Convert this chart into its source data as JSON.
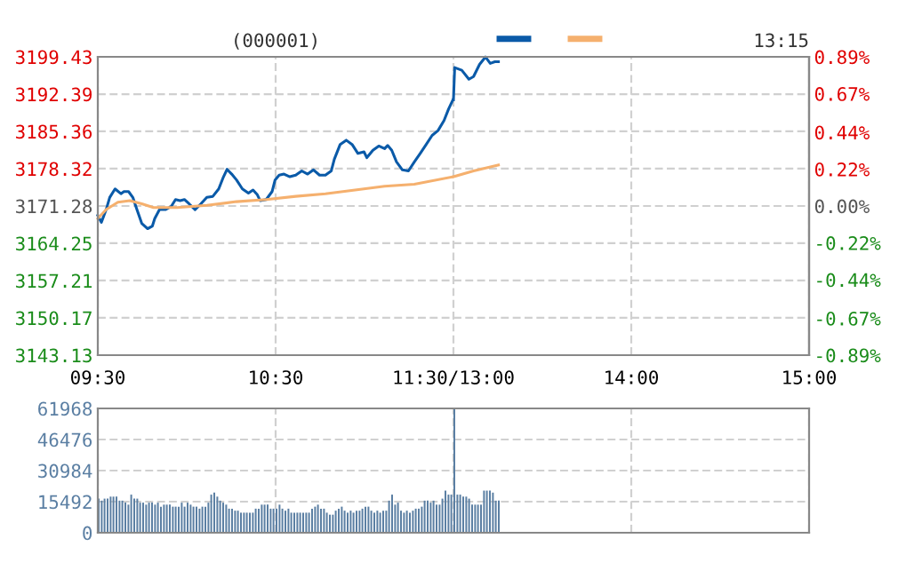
{
  "chart_data": [
    {
      "type": "line",
      "annotations": [
        "(000001)"
      ],
      "grid": true,
      "line_style": "solid",
      "marker": "none",
      "xlim": [
        9.5,
        11.5
      ],
      "xticks": [
        {
          "value": 9.5,
          "label": "09:30"
        },
        {
          "value": 10.5,
          "label": "10:30"
        },
        {
          "value": 11.5,
          "label": "11:30/13:00"
        }
      ],
      "ylim": [
        3143.13,
        3199.43
      ],
      "yticks": [
        3143.13,
        3150.17,
        3157.21,
        3164.25,
        3171.28,
        3178.32,
        3185.36,
        3192.39,
        3199.43
      ],
      "series": [
        {
          "color": "#0a5aa8",
          "x": [
            9.5,
            9.52,
            9.547,
            9.567,
            9.597,
            9.63,
            9.647,
            9.673,
            9.697,
            9.72,
            9.747,
            9.78,
            9.807,
            9.82,
            9.847,
            9.88,
            9.913,
            9.937,
            9.963,
            9.987,
            10.013,
            10.047,
            10.08,
            10.113,
            10.147,
            10.18,
            10.207,
            10.227,
            10.253,
            10.28,
            10.313,
            10.347,
            10.373,
            10.397,
            10.413,
            10.447,
            10.48,
            10.497,
            10.52,
            10.547,
            10.58,
            10.613,
            10.647,
            10.68,
            10.713,
            10.747,
            10.78,
            10.813,
            10.83,
            10.863,
            10.897,
            10.93,
            10.963,
            10.997,
            11.013,
            11.047,
            11.08,
            11.113,
            11.13,
            11.153,
            11.18,
            11.213,
            11.247,
            11.28,
            11.313,
            11.347,
            11.38,
            11.413,
            11.447,
            11.473,
            11.497
          ],
          "values": [
            3169.5,
            3168.2,
            3170.6,
            3172.9,
            3174.5,
            3173.6,
            3174.0,
            3174.0,
            3172.9,
            3170.6,
            3168.0,
            3167.0,
            3167.5,
            3168.9,
            3170.6,
            3170.6,
            3171.2,
            3172.5,
            3172.3,
            3172.5,
            3171.7,
            3170.6,
            3171.7,
            3172.9,
            3173.1,
            3174.5,
            3176.8,
            3178.2,
            3177.3,
            3176.2,
            3174.5,
            3173.7,
            3174.3,
            3173.4,
            3172.3,
            3172.5,
            3174.0,
            3176.2,
            3177.1,
            3177.3,
            3176.8,
            3177.1,
            3177.9,
            3177.3,
            3178.1,
            3177.1,
            3177.1,
            3177.9,
            3180.1,
            3182.9,
            3183.7,
            3182.9,
            3181.2,
            3181.5,
            3180.4,
            3181.8,
            3182.6,
            3182.1,
            3182.7,
            3181.8,
            3179.6,
            3178.1,
            3177.9,
            3179.6,
            3181.2,
            3182.9,
            3184.6,
            3185.5,
            3187.4,
            3189.6,
            3191.3
          ]
        },
        {
          "color": "#f5b06e",
          "x": [
            9.5,
            9.547,
            9.613,
            9.68,
            9.747,
            9.813,
            9.947,
            10.113,
            10.28,
            10.447,
            10.613,
            10.78,
            10.947,
            11.113,
            11.28,
            11.5
          ],
          "values": [
            3168.9,
            3170.6,
            3172.0,
            3172.3,
            3171.7,
            3171.0,
            3171.0,
            3171.4,
            3172.1,
            3172.5,
            3173.1,
            3173.6,
            3174.3,
            3175.0,
            3175.4,
            3176.8
          ]
        }
      ]
    },
    {
      "type": "line",
      "annotations": [
        "13:15"
      ],
      "grid": true,
      "tick_labels": "x",
      "line_style": "solid",
      "marker": "none",
      "xlim": [
        13,
        15
      ],
      "xticks": [
        {
          "value": 13,
          "label": null
        },
        {
          "value": 14,
          "label": "14:00"
        },
        {
          "value": 15,
          "label": "15:00"
        }
      ],
      "ylim": [
        3143.13,
        3199.43
      ],
      "yticks": [
        3143.13,
        3150.17,
        3157.21,
        3164.25,
        3171.28,
        3178.32,
        3185.36,
        3192.39,
        3199.43
      ],
      "y2lim": [
        -0.89,
        0.89
      ],
      "y2ticks": [
        {
          "value": -0.89,
          "label": "-0.89%"
        },
        {
          "value": -0.67,
          "label": "-0.67%"
        },
        {
          "value": -0.44,
          "label": "-0.44%"
        },
        {
          "value": -0.22,
          "label": "-0.22%"
        },
        {
          "value": 0,
          "label": "0.00%"
        },
        {
          "value": 0.22,
          "label": "0.22%"
        },
        {
          "value": 0.44,
          "label": "0.44%"
        },
        {
          "value": 0.67,
          "label": "0.67%"
        },
        {
          "value": 0.89,
          "label": "0.89%"
        }
      ],
      "series": [
        {
          "color": "#0a5aa8",
          "x": [
            13,
            13.007,
            13.047,
            13.087,
            13.113,
            13.147,
            13.18,
            13.207,
            13.233,
            13.253
          ],
          "values": [
            3191.3,
            3197.4,
            3196.9,
            3195.2,
            3195.7,
            3198.0,
            3199.4,
            3198.2,
            3198.5,
            3198.5
          ]
        },
        {
          "color": "#f5b06e",
          "x": [
            13,
            13.113,
            13.253
          ],
          "values": [
            3176.8,
            3177.9,
            3179.0
          ]
        }
      ]
    },
    {
      "type": "bar",
      "grid": true,
      "tick_labels": "y",
      "xlim": [
        9.5,
        11.5
      ],
      "xticks": [
        9.5,
        10.5,
        11.5
      ],
      "ylim": [
        0,
        61968
      ],
      "yticks": [
        0,
        15492,
        30984,
        46476,
        61968
      ],
      "series": [
        {
          "color": "#5b7fa3",
          "x": [
            9.5,
            9.517,
            9.533,
            9.55,
            9.567,
            9.583,
            9.6,
            9.617,
            9.633,
            9.65,
            9.667,
            9.683,
            9.7,
            9.717,
            9.733,
            9.75,
            9.767,
            9.783,
            9.8,
            9.817,
            9.833,
            9.85,
            9.867,
            9.883,
            9.9,
            9.917,
            9.933,
            9.95,
            9.967,
            9.983,
            10,
            10.017,
            10.033,
            10.05,
            10.067,
            10.083,
            10.1,
            10.117,
            10.133,
            10.15,
            10.167,
            10.183,
            10.2,
            10.217,
            10.233,
            10.25,
            10.267,
            10.283,
            10.3,
            10.317,
            10.333,
            10.35,
            10.367,
            10.383,
            10.4,
            10.417,
            10.433,
            10.45,
            10.467,
            10.483,
            10.5,
            10.517,
            10.533,
            10.55,
            10.567,
            10.583,
            10.6,
            10.617,
            10.633,
            10.65,
            10.667,
            10.683,
            10.7,
            10.717,
            10.733,
            10.75,
            10.767,
            10.783,
            10.8,
            10.817,
            10.833,
            10.85,
            10.867,
            10.883,
            10.9,
            10.917,
            10.933,
            10.95,
            10.967,
            10.983,
            11,
            11.017,
            11.033,
            11.05,
            11.067,
            11.083,
            11.1,
            11.117,
            11.133,
            11.15,
            11.167,
            11.183,
            11.2,
            11.217,
            11.233,
            11.25,
            11.267,
            11.283,
            11.3,
            11.317,
            11.333,
            11.35,
            11.367,
            11.383,
            11.4,
            11.417,
            11.433,
            11.45,
            11.467,
            11.483
          ],
          "values": [
            17000,
            16000,
            17000,
            17000,
            18000,
            18000,
            18000,
            16000,
            16000,
            15000,
            14000,
            19000,
            17000,
            17000,
            15000,
            15000,
            14000,
            15000,
            15000,
            14000,
            15000,
            13000,
            14000,
            14000,
            14000,
            13000,
            13000,
            13000,
            15000,
            13000,
            15000,
            14000,
            13000,
            13000,
            12000,
            13000,
            13000,
            15000,
            19000,
            20000,
            18000,
            16000,
            15000,
            14000,
            12000,
            12000,
            11000,
            11000,
            10000,
            10000,
            10000,
            10000,
            10000,
            12000,
            12000,
            14000,
            14000,
            14000,
            12000,
            12000,
            12000,
            14000,
            12000,
            11000,
            12000,
            10000,
            10000,
            10000,
            10000,
            10000,
            10000,
            10000,
            12000,
            13000,
            14000,
            12000,
            12000,
            10000,
            9000,
            9000,
            11000,
            12000,
            13000,
            11000,
            10000,
            11000,
            10000,
            11000,
            11000,
            12000,
            13000,
            13000,
            11000,
            10000,
            11000,
            10000,
            11000,
            11000,
            16000,
            19000,
            14000,
            15000,
            11000,
            10000,
            11000,
            10000,
            11000,
            12000,
            12000,
            13000,
            16000,
            16000,
            15000,
            16000,
            14000,
            14000,
            17000,
            21000,
            19000,
            19000
          ]
        }
      ]
    },
    {
      "type": "bar",
      "grid": true,
      "tick_labels": false,
      "xlim": [
        13,
        15
      ],
      "xticks": [
        13,
        14,
        15
      ],
      "ylim": [
        0,
        61968
      ],
      "yticks": [
        0,
        15492,
        30984,
        46476,
        61968
      ],
      "series": [
        {
          "color": "#5b7fa3",
          "x": [
            13,
            13.017,
            13.033,
            13.05,
            13.067,
            13.083,
            13.1,
            13.117,
            13.133,
            13.15,
            13.167,
            13.183,
            13.2,
            13.217,
            13.233,
            13.25
          ],
          "values": [
            61968,
            19000,
            19000,
            18000,
            18000,
            17000,
            14000,
            14000,
            14000,
            14000,
            21000,
            21000,
            21000,
            20000,
            16000,
            16000
          ]
        }
      ]
    }
  ]
}
